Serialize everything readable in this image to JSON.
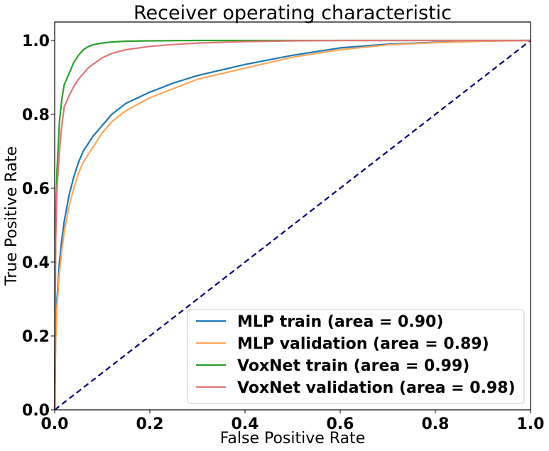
{
  "chart_data": {
    "type": "line",
    "title": "Receiver operating characteristic",
    "xlabel": "False Positive Rate",
    "ylabel": "True Positive Rate",
    "xlim": [
      0.0,
      1.0
    ],
    "ylim": [
      0.0,
      1.05
    ],
    "xticks": [
      "0.0",
      "0.2",
      "0.4",
      "0.6",
      "0.8",
      "1.0"
    ],
    "yticks": [
      "0.0",
      "0.2",
      "0.4",
      "0.6",
      "0.8",
      "1.0"
    ],
    "grid": false,
    "legend_position": "lower-right",
    "series": [
      {
        "name": "MLP train (area = 0.90)",
        "color": "#1f77b4",
        "x": [
          0,
          0.002,
          0.005,
          0.01,
          0.015,
          0.02,
          0.03,
          0.04,
          0.05,
          0.06,
          0.07,
          0.08,
          0.1,
          0.12,
          0.15,
          0.2,
          0.25,
          0.3,
          0.35,
          0.4,
          0.5,
          0.6,
          0.7,
          0.8,
          0.9,
          1.0
        ],
        "y": [
          0,
          0.2,
          0.3,
          0.4,
          0.46,
          0.51,
          0.58,
          0.63,
          0.67,
          0.7,
          0.72,
          0.74,
          0.77,
          0.8,
          0.83,
          0.86,
          0.885,
          0.905,
          0.92,
          0.935,
          0.96,
          0.98,
          0.99,
          0.995,
          0.999,
          1.0
        ]
      },
      {
        "name": "MLP validation (area = 0.89)",
        "color": "#ffa75c",
        "x": [
          0,
          0.002,
          0.005,
          0.01,
          0.015,
          0.02,
          0.03,
          0.04,
          0.05,
          0.06,
          0.07,
          0.08,
          0.1,
          0.12,
          0.15,
          0.2,
          0.25,
          0.3,
          0.35,
          0.4,
          0.5,
          0.6,
          0.7,
          0.8,
          0.9,
          1.0
        ],
        "y": [
          0,
          0.18,
          0.28,
          0.37,
          0.43,
          0.48,
          0.55,
          0.6,
          0.64,
          0.67,
          0.69,
          0.71,
          0.75,
          0.78,
          0.81,
          0.845,
          0.87,
          0.895,
          0.91,
          0.925,
          0.955,
          0.975,
          0.988,
          0.994,
          0.998,
          1.0
        ]
      },
      {
        "name": "VoxNet train (area = 0.99)",
        "color": "#2ca02c",
        "x": [
          0,
          0.002,
          0.005,
          0.01,
          0.015,
          0.02,
          0.03,
          0.04,
          0.05,
          0.06,
          0.07,
          0.08,
          0.1,
          0.12,
          0.15,
          0.2,
          0.3,
          0.4,
          0.6,
          0.8,
          1.0
        ],
        "y": [
          0,
          0.5,
          0.65,
          0.78,
          0.84,
          0.88,
          0.91,
          0.94,
          0.96,
          0.975,
          0.983,
          0.988,
          0.993,
          0.996,
          0.998,
          0.999,
          1.0,
          1.0,
          1.0,
          1.0,
          1.0
        ]
      },
      {
        "name": "VoxNet validation (area = 0.98)",
        "color": "#e07777",
        "x": [
          0,
          0.002,
          0.005,
          0.01,
          0.015,
          0.02,
          0.03,
          0.04,
          0.05,
          0.06,
          0.07,
          0.08,
          0.1,
          0.12,
          0.15,
          0.2,
          0.25,
          0.3,
          0.4,
          0.5,
          0.6,
          0.8,
          1.0
        ],
        "y": [
          0,
          0.45,
          0.6,
          0.7,
          0.77,
          0.82,
          0.85,
          0.875,
          0.895,
          0.91,
          0.925,
          0.935,
          0.953,
          0.965,
          0.975,
          0.984,
          0.989,
          0.993,
          0.997,
          0.999,
          1.0,
          1.0,
          1.0
        ]
      }
    ],
    "reference_line": {
      "color": "#000080",
      "style": "dashed",
      "x": [
        0,
        1
      ],
      "y": [
        0,
        1
      ]
    }
  }
}
